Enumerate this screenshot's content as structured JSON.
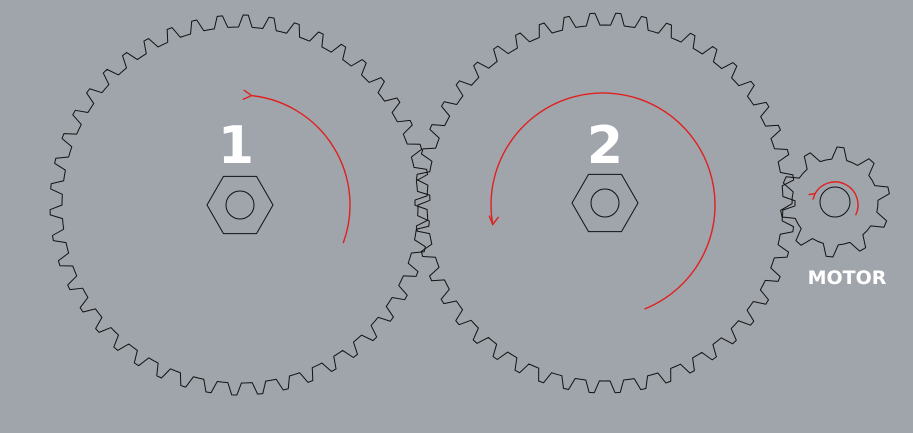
{
  "diagram": {
    "background_color": "#a0a5ac",
    "outline_color": "#111111",
    "arrow_color": "#e0201e",
    "gears": [
      {
        "label": "1",
        "tooth_count": 46,
        "rotation": "clockwise"
      },
      {
        "label": "2",
        "tooth_count": 46,
        "rotation": "counterclockwise"
      },
      {
        "label": "MOTOR",
        "tooth_count": 10,
        "rotation": "clockwise"
      }
    ]
  }
}
